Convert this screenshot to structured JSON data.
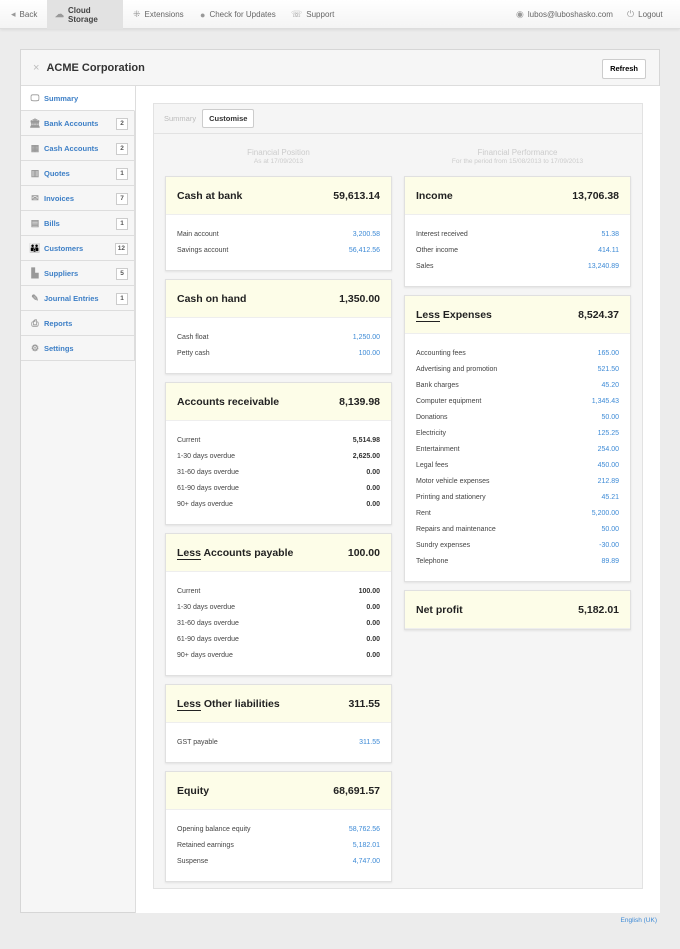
{
  "topbar": {
    "back": "Back",
    "cloud_storage": "Cloud Storage",
    "extensions": "Extensions",
    "check_updates": "Check for Updates",
    "support": "Support",
    "user": "lubos@luboshasko.com",
    "logout": "Logout"
  },
  "panel": {
    "title": "ACME Corporation",
    "refresh": "Refresh",
    "close": "×"
  },
  "sidebar": [
    {
      "label": "Summary",
      "icon": "🖵",
      "badge": null,
      "active": true
    },
    {
      "label": "Bank Accounts",
      "icon": "🏛",
      "badge": "2"
    },
    {
      "label": "Cash Accounts",
      "icon": "▦",
      "badge": "2"
    },
    {
      "label": "Quotes",
      "icon": "▥",
      "badge": "1"
    },
    {
      "label": "Invoices",
      "icon": "✉",
      "badge": "7"
    },
    {
      "label": "Bills",
      "icon": "▤",
      "badge": "1"
    },
    {
      "label": "Customers",
      "icon": "👪",
      "badge": "12"
    },
    {
      "label": "Suppliers",
      "icon": "▙",
      "badge": "5"
    },
    {
      "label": "Journal Entries",
      "icon": "✎",
      "badge": "1"
    },
    {
      "label": "Reports",
      "icon": "⎙",
      "badge": null
    },
    {
      "label": "Settings",
      "icon": "⚙",
      "badge": null
    }
  ],
  "tabs": {
    "summary": "Summary",
    "customise": "Customise"
  },
  "position": {
    "heading": "Financial Position",
    "sub": "As at 17/09/2013",
    "cards": [
      {
        "title": "Cash at bank",
        "total": "59,613.14",
        "style": "link",
        "rows": [
          [
            "Main account",
            "3,200.58"
          ],
          [
            "Savings account",
            "56,412.56"
          ]
        ]
      },
      {
        "title": "Cash on hand",
        "total": "1,350.00",
        "style": "link",
        "rows": [
          [
            "Cash float",
            "1,250.00"
          ],
          [
            "Petty cash",
            "100.00"
          ]
        ]
      },
      {
        "title": "Accounts receivable",
        "total": "8,139.98",
        "style": "bold",
        "rows": [
          [
            "Current",
            "5,514.98"
          ],
          [
            "1-30 days overdue",
            "2,625.00"
          ],
          [
            "31-60 days overdue",
            "0.00"
          ],
          [
            "61-90 days overdue",
            "0.00"
          ],
          [
            "90+ days overdue",
            "0.00"
          ]
        ]
      },
      {
        "prefix": "Less",
        "title": "Accounts payable",
        "total": "100.00",
        "style": "bold",
        "rows": [
          [
            "Current",
            "100.00"
          ],
          [
            "1-30 days overdue",
            "0.00"
          ],
          [
            "31-60 days overdue",
            "0.00"
          ],
          [
            "61-90 days overdue",
            "0.00"
          ],
          [
            "90+ days overdue",
            "0.00"
          ]
        ]
      },
      {
        "prefix": "Less",
        "title": "Other liabilities",
        "total": "311.55",
        "style": "link",
        "rows": [
          [
            "GST payable",
            "311.55"
          ]
        ]
      },
      {
        "title": "Equity",
        "total": "68,691.57",
        "style": "link",
        "rows": [
          [
            "Opening balance equity",
            "58,762.56"
          ],
          [
            "Retained earnings",
            "5,182.01"
          ],
          [
            "Suspense",
            "4,747.00"
          ]
        ]
      }
    ]
  },
  "performance": {
    "heading": "Financial Performance",
    "sub": "For the period from 15/08/2013 to 17/09/2013",
    "cards": [
      {
        "title": "Income",
        "total": "13,706.38",
        "style": "link",
        "rows": [
          [
            "Interest received",
            "51.38"
          ],
          [
            "Other income",
            "414.11"
          ],
          [
            "Sales",
            "13,240.89"
          ]
        ]
      },
      {
        "prefix": "Less",
        "title": "Expenses",
        "total": "8,524.37",
        "style": "link",
        "rows": [
          [
            "Accounting fees",
            "165.00"
          ],
          [
            "Advertising and promotion",
            "521.50"
          ],
          [
            "Bank charges",
            "45.20"
          ],
          [
            "Computer equipment",
            "1,345.43"
          ],
          [
            "Donations",
            "50.00"
          ],
          [
            "Electricity",
            "125.25"
          ],
          [
            "Entertainment",
            "254.00"
          ],
          [
            "Legal fees",
            "450.00"
          ],
          [
            "Motor vehicle expenses",
            "212.89"
          ],
          [
            "Printing and stationery",
            "45.21"
          ],
          [
            "Rent",
            "5,200.00"
          ],
          [
            "Repairs and maintenance",
            "50.00"
          ],
          [
            "Sundry expenses",
            "-30.00"
          ],
          [
            "Telephone",
            "89.89"
          ]
        ]
      },
      {
        "title": "Net profit",
        "total": "5,182.01",
        "rows": []
      }
    ]
  },
  "footer": {
    "language": "English (UK)"
  }
}
